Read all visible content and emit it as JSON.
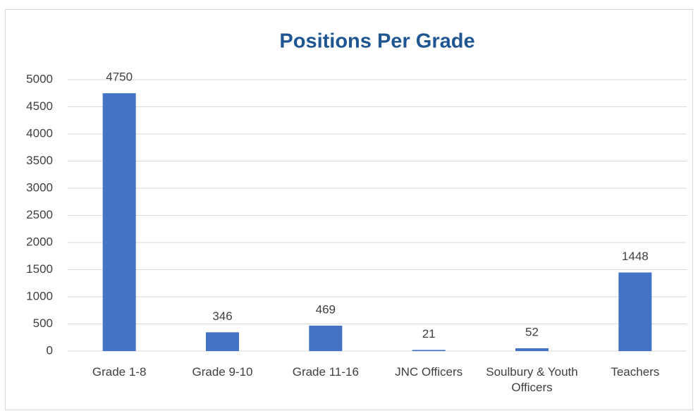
{
  "chart_data": {
    "type": "bar",
    "title": "Positions Per Grade",
    "categories": [
      "Grade 1-8",
      "Grade 9-10",
      "Grade 11-16",
      "JNC Officers",
      "Soulbury & Youth Officers",
      "Teachers"
    ],
    "values": [
      4750,
      346,
      469,
      21,
      52,
      1448
    ],
    "color": "#4472c4",
    "ylim": [
      0,
      5000
    ],
    "yticks": [
      0,
      500,
      1000,
      1500,
      2000,
      2500,
      3000,
      3500,
      4000,
      4500,
      5000
    ],
    "grid": true
  }
}
